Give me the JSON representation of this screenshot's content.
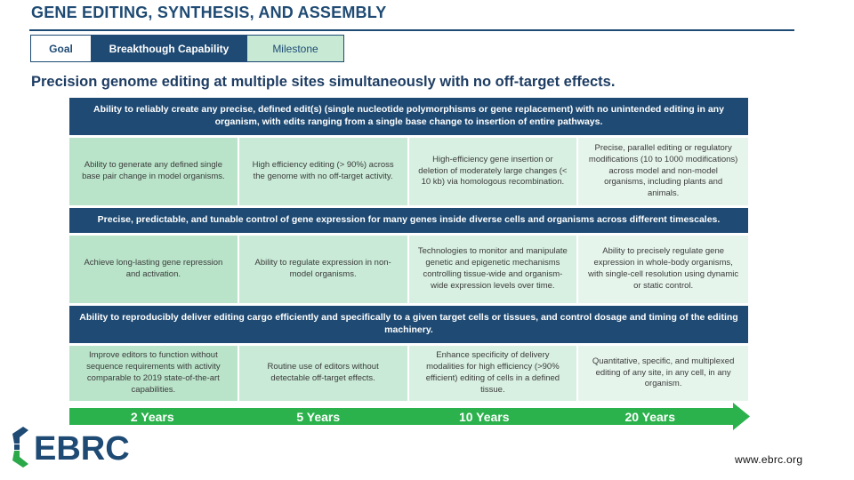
{
  "title": "GENE EDITING, SYNTHESIS, AND ASSEMBLY",
  "legend": {
    "goal": "Goal",
    "breakthrough": "Breakthough Capability",
    "milestone": "Milestone"
  },
  "headline": "Precision genome editing at multiple sites simultaneously with no off-target effects.",
  "sections": [
    {
      "capability": "Ability to reliably create any precise, defined edit(s) (single nucleotide polymorphisms or gene replacement) with no unintended editing in any organism, with edits ranging from a single base change to insertion of entire pathways.",
      "milestones": [
        "Ability to generate any defined single base pair change in model organisms.",
        "High efficiency editing (> 90%) across the genome with no off-target activity.",
        "High-efficiency gene insertion or deletion of moderately large changes (< 10 kb) via homologous recombination.",
        "Precise, parallel editing or regulatory modifications (10 to 1000 modifications) across model and non-model organisms, including plants and animals."
      ]
    },
    {
      "capability": "Precise, predictable, and tunable control of gene expression for many genes inside diverse cells and organisms across different timescales.",
      "milestones": [
        "Achieve long-lasting gene repression and activation.",
        "Ability to regulate expression in non-model organisms.",
        "Technologies to monitor and manipulate genetic and epigenetic mechanisms controlling tissue-wide and organism-wide expression levels over time.",
        "Ability to precisely regulate gene expression in whole-body organisms, with single-cell resolution using dynamic or static control."
      ]
    },
    {
      "capability": "Ability to reproducibly deliver editing cargo efficiently and specifically to a given target cells or tissues, and control dosage and timing of the editing machinery.",
      "milestones": [
        "Improve editors to function without sequence requirements with activity comparable to 2019 state-of-the-art capabilities.",
        "Routine use of editors without detectable off-target effects.",
        "Enhance specificity of delivery modalities for high efficiency (>90% efficient) editing of cells in a defined tissue.",
        "Quantitative, specific, and multiplexed editing of any site, in any cell, in any organism."
      ]
    }
  ],
  "timeline": [
    "2 Years",
    "5 Years",
    "10 Years",
    "20 Years"
  ],
  "brand": {
    "logo_text": "EBRC",
    "url": "www.ebrc.org",
    "logo_color": "#1e4a73",
    "logo_accent": "#2ba84a"
  },
  "colors": {
    "navy": "#1e4a73",
    "timeline_green": "#2bb24c",
    "milestone_fills": [
      "#b9e4c9",
      "#c9ead6",
      "#d8f0e1",
      "#e6f5ec"
    ]
  }
}
